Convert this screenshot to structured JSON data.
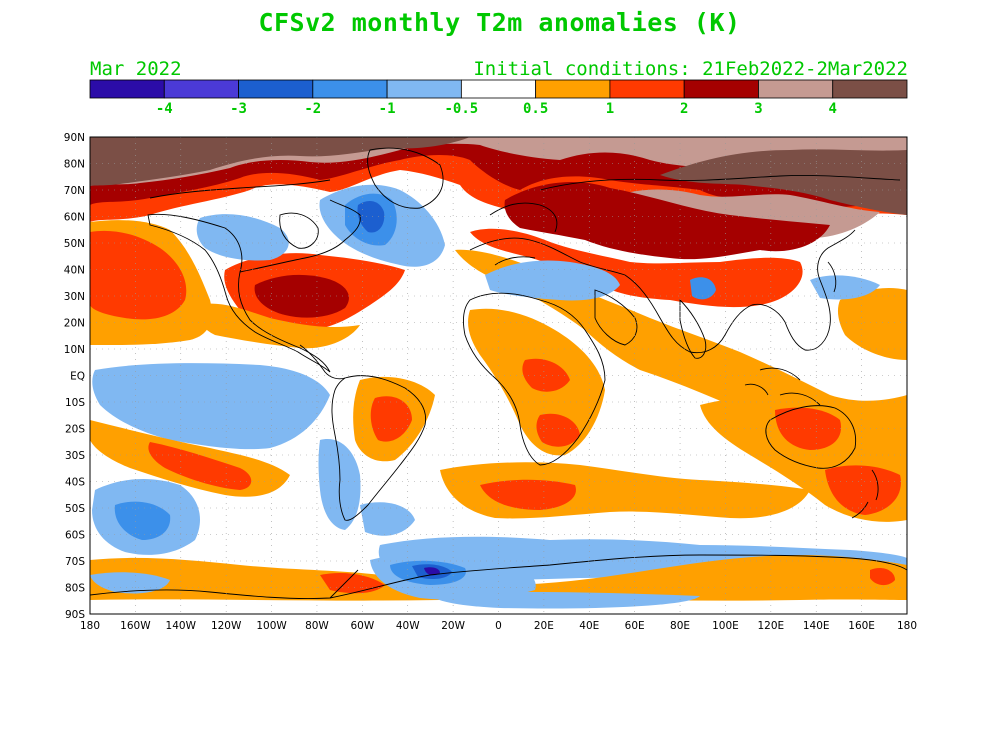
{
  "title": "CFSv2 monthly T2m anomalies (K)",
  "month_label": "Mar 2022",
  "ic_label": "Initial conditions: 21Feb2022-2Mar2022",
  "colorbar": {
    "bins": [
      {
        "color": "#2b0ca8"
      },
      {
        "color": "#4b3ad6"
      },
      {
        "color": "#1c5fcf"
      },
      {
        "color": "#3c90ea"
      },
      {
        "color": "#80b8f2"
      },
      {
        "color": "#ffffff"
      },
      {
        "color": "#ffa000"
      },
      {
        "color": "#ff3a00"
      },
      {
        "color": "#a50000"
      },
      {
        "color": "#c59a92"
      },
      {
        "color": "#7b4f46"
      }
    ],
    "labels": [
      "-4",
      "-3",
      "-2",
      "-1",
      "-0.5",
      "0.5",
      "1",
      "2",
      "3",
      "4"
    ],
    "label_color": "#00c800"
  },
  "map": {
    "lat_labels": [
      "90N",
      "80N",
      "70N",
      "60N",
      "50N",
      "40N",
      "30N",
      "20N",
      "10N",
      "EQ",
      "10S",
      "20S",
      "30S",
      "40S",
      "50S",
      "60S",
      "70S",
      "80S",
      "90S"
    ],
    "lon_labels": [
      "180",
      "160W",
      "140W",
      "120W",
      "100W",
      "80W",
      "60W",
      "40W",
      "20W",
      "0",
      "20E",
      "40E",
      "60E",
      "80E",
      "100E",
      "120E",
      "140E",
      "160E",
      "180"
    ]
  }
}
